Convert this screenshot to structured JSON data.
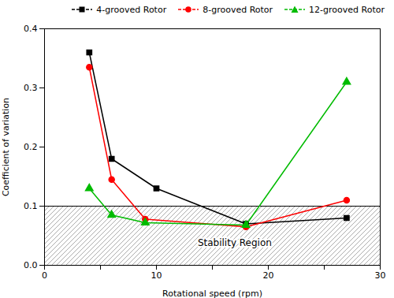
{
  "chart_data": {
    "type": "line",
    "xlabel": "Rotational speed (rpm)",
    "ylabel": "Coefficient of variation",
    "series": [
      {
        "name": "4-grooved Rotor",
        "color": "#000000",
        "marker": "square",
        "x": [
          4,
          6,
          10,
          18,
          27
        ],
        "values": [
          0.36,
          0.18,
          0.13,
          0.07,
          0.08
        ]
      },
      {
        "name": "8-grooved Rotor",
        "color": "#ff0000",
        "marker": "circle",
        "x": [
          4,
          6,
          9,
          18,
          27
        ],
        "values": [
          0.335,
          0.145,
          0.078,
          0.065,
          0.11
        ]
      },
      {
        "name": "12-grooved Rotor",
        "color": "#00bb00",
        "marker": "triangle",
        "x": [
          4,
          6,
          9,
          18,
          27
        ],
        "values": [
          0.13,
          0.085,
          0.072,
          0.068,
          0.31
        ]
      }
    ],
    "xlim": [
      0,
      30
    ],
    "xticks": [
      0,
      {
        "value": 5,
        "label": ""
      },
      10,
      {
        "value": 15,
        "label": ""
      },
      20,
      {
        "value": 25,
        "label": ""
      },
      30
    ],
    "ylim": [
      0.0,
      0.4
    ],
    "yticks": [
      {
        "value": 0,
        "label": "0.0"
      },
      0.1,
      0.2,
      0.3,
      0.4
    ],
    "grid": false,
    "legend": "upper right",
    "annotations": [
      {
        "text": "Stability Region",
        "x": 17,
        "y": 0.038
      }
    ],
    "bands": [
      {
        "y0": 0,
        "y1": 0.1
      }
    ],
    "hlines": [
      0.1
    ]
  }
}
